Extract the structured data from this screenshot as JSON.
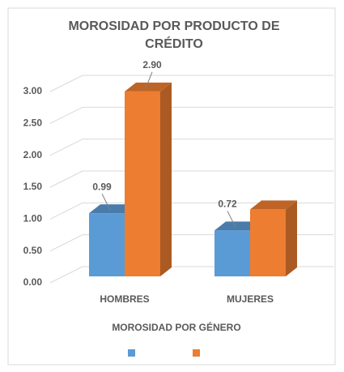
{
  "chart_data": {
    "type": "bar3d",
    "title": "MOROSIDAD POR PRODUCTO DE CRÉDITO",
    "x_label": "MOROSIDAD POR GÉNERO",
    "categories": [
      "HOMBRES",
      "MUJERES"
    ],
    "series": [
      {
        "color": "#5b9bd5",
        "values": [
          0.99,
          0.72
        ],
        "value_labels": [
          "0.99",
          "0.72"
        ]
      },
      {
        "color": "#ed7d31",
        "values": [
          2.9,
          1.05
        ],
        "value_labels": [
          "2.90",
          null
        ]
      }
    ],
    "ylim": [
      0,
      3
    ],
    "yticks": [
      {
        "value": 0,
        "label": "0.00"
      },
      {
        "value": 0.5,
        "label": "0.50"
      },
      {
        "value": 1,
        "label": "1.00"
      },
      {
        "value": 1.5,
        "label": "1.50"
      },
      {
        "value": 2,
        "label": "2.00"
      },
      {
        "value": 2.5,
        "label": "2.50"
      },
      {
        "value": 3,
        "label": "3.00"
      }
    ],
    "grid": true,
    "legend": "bottom"
  }
}
